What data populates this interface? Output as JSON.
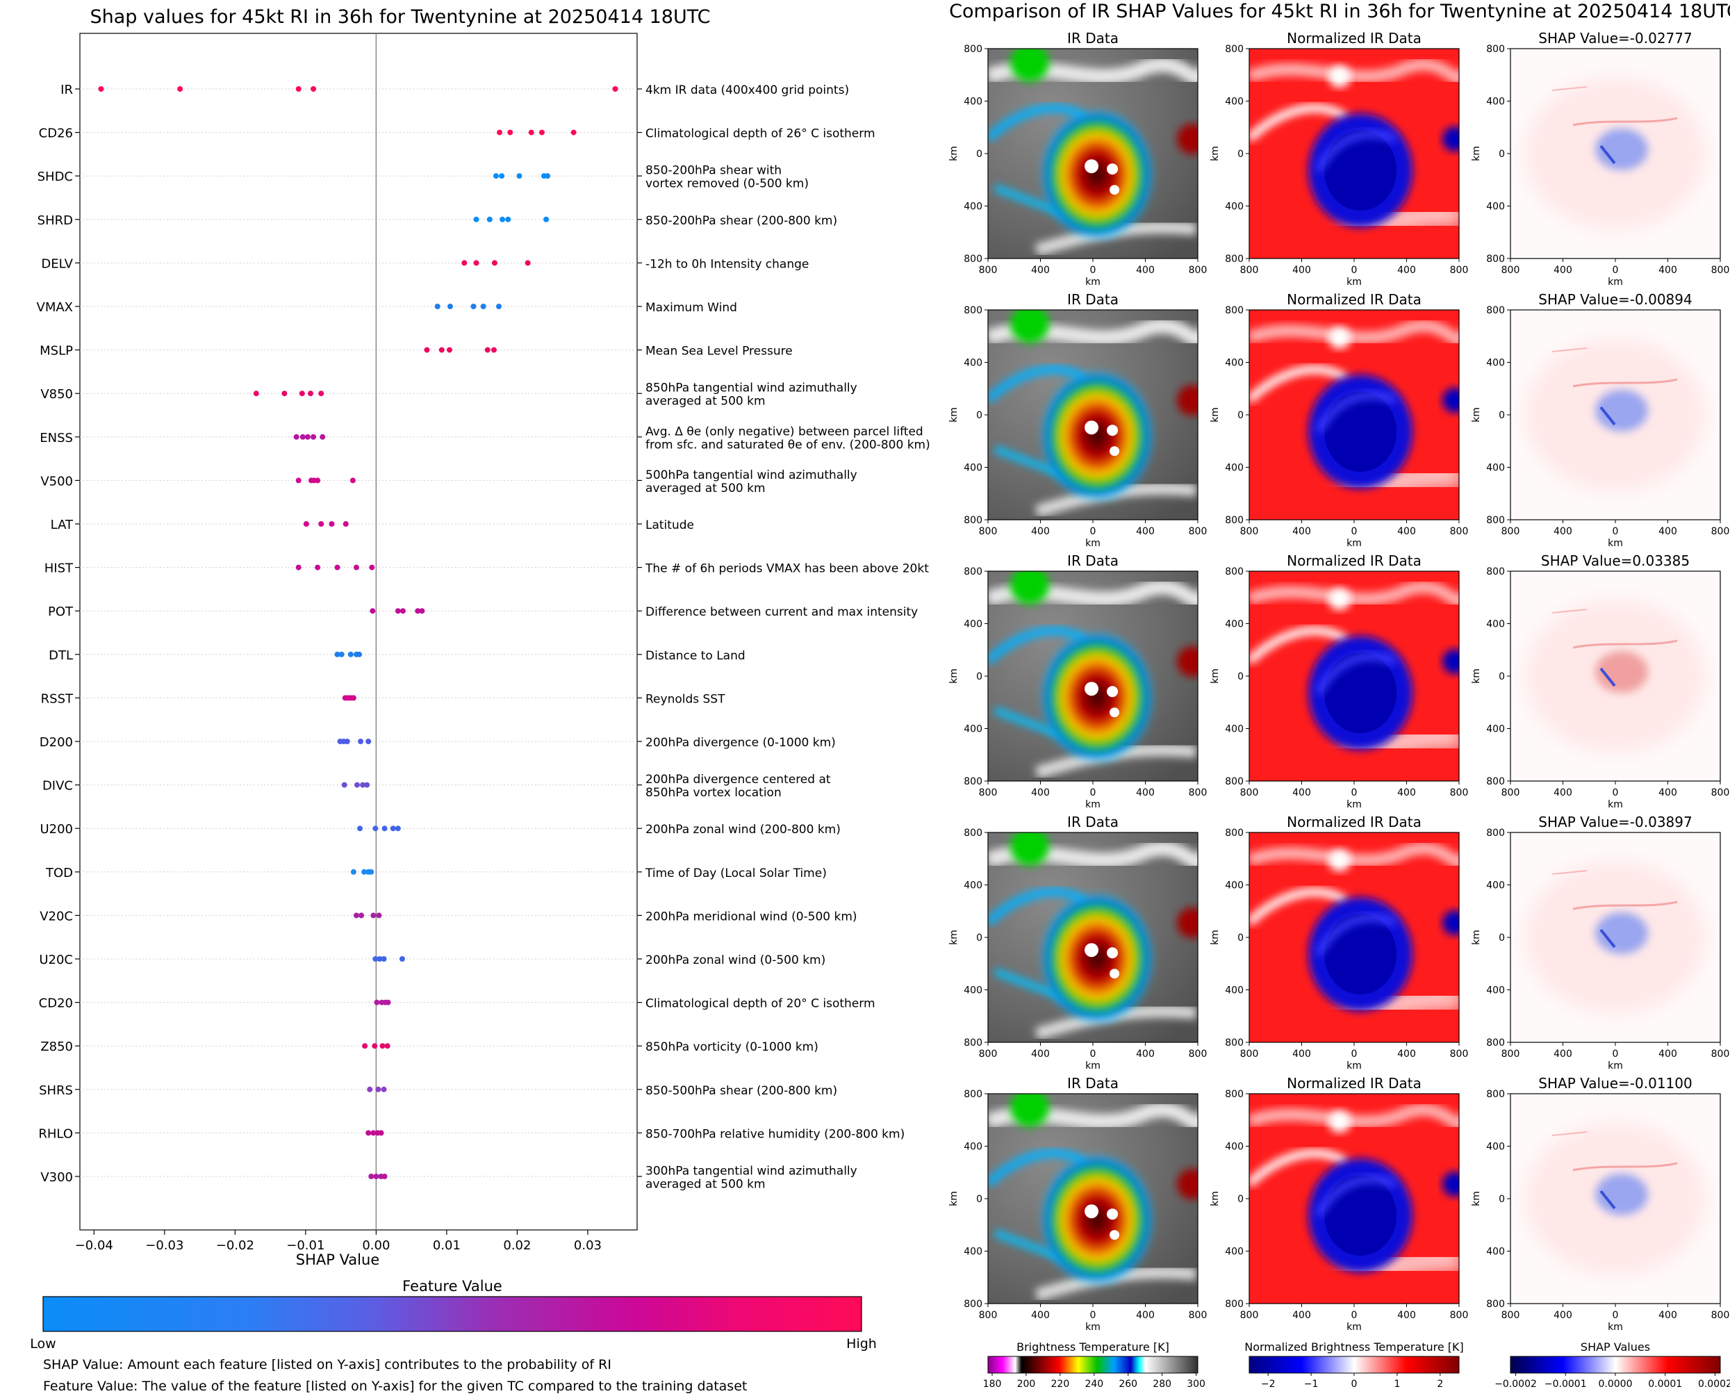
{
  "left_panel": {
    "title": "Shap values for 45kt RI in 36h for Twentynine at 20250414 18UTC",
    "colorbar_label": "Feature Value",
    "colorbar_low": "Low",
    "colorbar_high": "High",
    "colorbar_colors": [
      "#0a8df8",
      "#5060e8",
      "#9b2fb2",
      "#d4058f",
      "#ff0a58"
    ],
    "footnote_1": "SHAP Value: Amount each feature [listed on Y-axis] contributes to the probability of RI",
    "footnote_2": "Feature Value: The value of the feature [listed on Y-axis] for the given TC compared to the training dataset"
  },
  "right_panel": {
    "title": "Comparison of IR SHAP Values for 45kt RI in 36h for Twentynine at 20250414 18UTC",
    "col_titles": [
      "IR Data",
      "Normalized IR Data"
    ],
    "shap_titles": [
      "SHAP Value=-0.02777",
      "SHAP Value=-0.00894",
      "SHAP Value=0.03385",
      "SHAP Value=-0.03897",
      "SHAP Value=-0.01100"
    ],
    "axis_label": "km",
    "x_ticks": [
      "800",
      "400",
      "0",
      "400",
      "800"
    ],
    "y_ticks": [
      "800",
      "400",
      "0",
      "400",
      "800"
    ],
    "colorbars": [
      {
        "label": "Brightness Temperature [K]",
        "ticks": [
          "180",
          "200",
          "220",
          "240",
          "260",
          "280",
          "300"
        ]
      },
      {
        "label": "Normalized Brightness Temperature [K]",
        "ticks": [
          "−2",
          "−1",
          "0",
          "1",
          "2"
        ]
      },
      {
        "label": "SHAP Values",
        "ticks": [
          "−0.0002",
          "−0.0001",
          "0.0000",
          "0.0001",
          "0.0002"
        ]
      }
    ]
  },
  "chart_data": {
    "type": "scatter",
    "title": "Shap values for 45kt RI in 36h for Twentynine at 20250414 18UTC",
    "xlabel": "SHAP Value",
    "xlim": [
      -0.042,
      0.037
    ],
    "xticks": [
      -0.04,
      -0.03,
      -0.02,
      -0.01,
      0.0,
      0.01,
      0.02,
      0.03
    ],
    "xtick_labels": [
      "−0.04",
      "−0.03",
      "−0.02",
      "−0.01",
      "0.00",
      "0.01",
      "0.02",
      "0.03"
    ],
    "features": [
      {
        "code": "IR",
        "desc": [
          "4km IR data (400x400 grid points)"
        ],
        "color": "#ff0a58",
        "values": [
          -0.039,
          -0.0278,
          -0.011,
          -0.0089,
          0.0339
        ]
      },
      {
        "code": "CD26",
        "desc": [
          "Climatological depth of 26° C isotherm"
        ],
        "color": "#ff0a58",
        "values": [
          0.0175,
          0.019,
          0.022,
          0.0235,
          0.028
        ]
      },
      {
        "code": "SHDC",
        "desc": [
          "850-200hPa shear with",
          "vortex removed (0-500 km)"
        ],
        "color": "#0a8df8",
        "values": [
          0.017,
          0.0178,
          0.0203,
          0.0238,
          0.0243
        ]
      },
      {
        "code": "SHRD",
        "desc": [
          "850-200hPa shear (200-800 km)"
        ],
        "color": "#0a8df8",
        "values": [
          0.0142,
          0.0161,
          0.0179,
          0.0187,
          0.0241
        ]
      },
      {
        "code": "DELV",
        "desc": [
          "-12h to 0h Intensity change"
        ],
        "color": "#f0075f",
        "values": [
          0.0125,
          0.0142,
          0.0168,
          0.0215
        ]
      },
      {
        "code": "VMAX",
        "desc": [
          "Maximum Wind"
        ],
        "color": "#1f7fee",
        "values": [
          0.0087,
          0.0105,
          0.0138,
          0.0152,
          0.0174
        ]
      },
      {
        "code": "MSLP",
        "desc": [
          "Mean Sea Level Pressure"
        ],
        "color": "#f0075f",
        "values": [
          0.0072,
          0.0093,
          0.0104,
          0.0158,
          0.0167
        ]
      },
      {
        "code": "V850",
        "desc": [
          "850hPa tangential wind azimuthally",
          "averaged at 500 km"
        ],
        "color": "#e8086a",
        "values": [
          -0.017,
          -0.013,
          -0.0105,
          -0.0093,
          -0.0078
        ]
      },
      {
        "code": "ENSS",
        "desc": [
          "Avg. Δ θe (only negative) between parcel lifted",
          "from sfc. and saturated θe of env. (200-800 km)"
        ],
        "color": "#b8169e",
        "values": [
          -0.0113,
          -0.0104,
          -0.0097,
          -0.0089,
          -0.0076
        ]
      },
      {
        "code": "V500",
        "desc": [
          "500hPa tangential wind azimuthally",
          "averaged at 500 km"
        ],
        "color": "#d4088c",
        "values": [
          -0.011,
          -0.0092,
          -0.0088,
          -0.0083,
          -0.0033
        ]
      },
      {
        "code": "LAT",
        "desc": [
          "Latitude"
        ],
        "color": "#d4058f",
        "values": [
          -0.0099,
          -0.0078,
          -0.0063,
          -0.0043
        ]
      },
      {
        "code": "HIST",
        "desc": [
          "The # of 6h periods VMAX has been above 20kt"
        ],
        "color": "#c90a93",
        "values": [
          -0.011,
          -0.0083,
          -0.0055,
          -0.0028,
          -0.0006
        ]
      },
      {
        "code": "POT",
        "desc": [
          "Difference between current and max intensity"
        ],
        "color": "#c00e98",
        "values": [
          -0.0005,
          0.0031,
          0.0038,
          0.0059,
          0.0065
        ]
      },
      {
        "code": "DTL",
        "desc": [
          "Distance to Land"
        ],
        "color": "#1f7fee",
        "values": [
          -0.0055,
          -0.0049,
          -0.0036,
          -0.0028,
          -0.0024
        ]
      },
      {
        "code": "RSST",
        "desc": [
          "Reynolds SST"
        ],
        "color": "#d4058f",
        "values": [
          -0.0044,
          -0.004,
          -0.0036,
          -0.0032
        ]
      },
      {
        "code": "D200",
        "desc": [
          "200hPa divergence (0-1000 km)"
        ],
        "color": "#4f5ce6",
        "values": [
          -0.0051,
          -0.0046,
          -0.0041,
          -0.0022,
          -0.0011
        ]
      },
      {
        "code": "DIVC",
        "desc": [
          "200hPa divergence centered at",
          "850hPa vortex location"
        ],
        "color": "#6f4fd4",
        "values": [
          -0.0045,
          -0.0027,
          -0.0019,
          -0.0013
        ]
      },
      {
        "code": "U200",
        "desc": [
          "200hPa zonal wind (200-800 km)"
        ],
        "color": "#4166e6",
        "values": [
          -0.0023,
          -0.0001,
          0.0012,
          0.0024,
          0.0031
        ]
      },
      {
        "code": "TOD",
        "desc": [
          "Time of Day (Local Solar Time)"
        ],
        "color": "#1f8af0",
        "values": [
          -0.0032,
          -0.0017,
          -0.0011,
          -0.0007
        ]
      },
      {
        "code": "V20C",
        "desc": [
          "200hPa meridional wind (0-500 km)"
        ],
        "color": "#a7229f",
        "values": [
          -0.0028,
          -0.0021,
          -0.0004,
          0.0004
        ]
      },
      {
        "code": "U20C",
        "desc": [
          "200hPa zonal wind (0-500 km)"
        ],
        "color": "#4166e6",
        "values": [
          -0.0001,
          0.0005,
          0.0011,
          0.0037
        ]
      },
      {
        "code": "CD20",
        "desc": [
          "Climatological depth of 20° C isotherm"
        ],
        "color": "#b21ca2",
        "values": [
          0.0001,
          0.0008,
          0.0013,
          0.0017
        ]
      },
      {
        "code": "Z850",
        "desc": [
          "850hPa vorticity (0-1000 km)"
        ],
        "color": "#e60a6f",
        "values": [
          -0.0016,
          -0.0002,
          0.0009,
          0.0016
        ]
      },
      {
        "code": "SHRS",
        "desc": [
          "850-500hPa shear (200-800 km)"
        ],
        "color": "#8d40c8",
        "values": [
          -0.0009,
          0.0003,
          0.0011
        ]
      },
      {
        "code": "RHLO",
        "desc": [
          "850-700hPa relative humidity (200-800 km)"
        ],
        "color": "#c40c93",
        "values": [
          -0.0011,
          -0.0004,
          0.0002,
          0.0007
        ]
      },
      {
        "code": "V300",
        "desc": [
          "300hPa tangential wind azimuthally",
          "averaged at 500 km"
        ],
        "color": "#b31a9e",
        "values": [
          -0.0007,
          0.0,
          0.0007,
          0.0012
        ]
      }
    ]
  }
}
